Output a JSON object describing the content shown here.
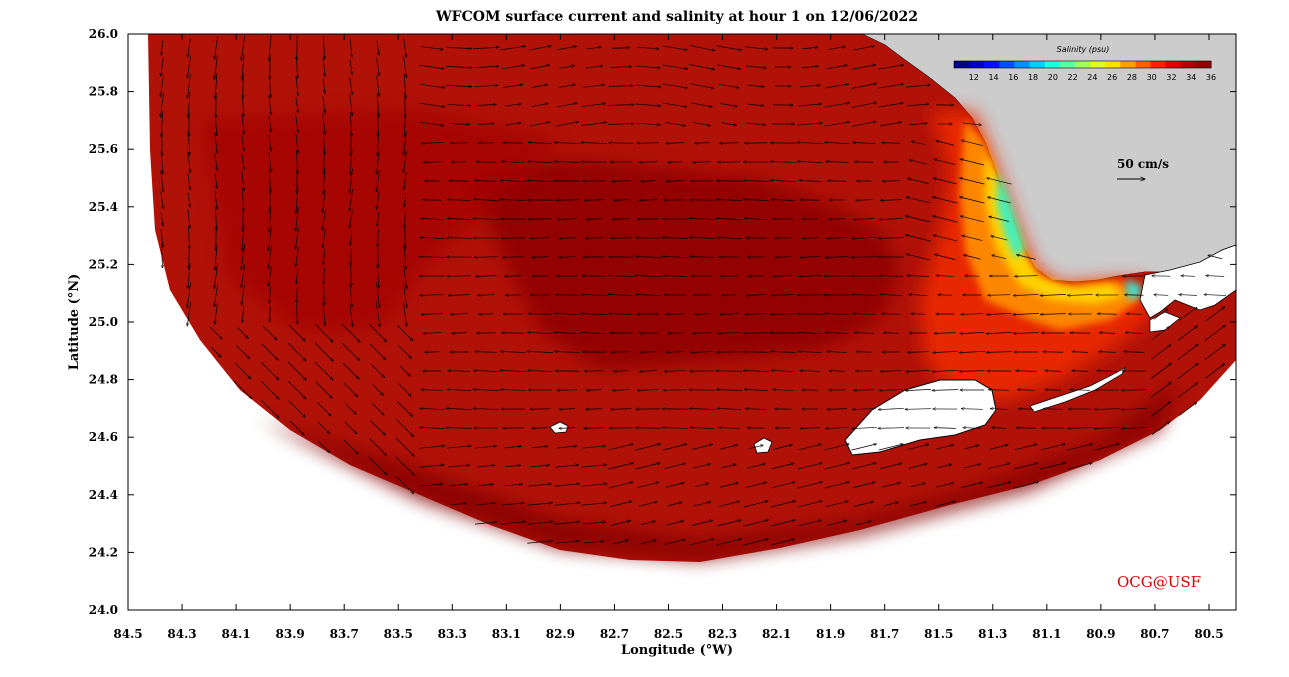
{
  "figure": {
    "title": "WFCOM surface current and salinity at hour 1 on 12/06/2022",
    "credit": "OCG@USF"
  },
  "axes": {
    "xlabel": "Longitude (°W)",
    "ylabel": "Latitude (°N)",
    "xticks": [
      "84.5",
      "84.3",
      "84.1",
      "83.9",
      "83.7",
      "83.5",
      "83.3",
      "83.1",
      "82.9",
      "82.7",
      "82.5",
      "82.3",
      "82.1",
      "81.9",
      "81.7",
      "81.5",
      "81.3",
      "81.1",
      "80.9",
      "80.7",
      "80.5"
    ],
    "yticks": [
      "26.0",
      "25.8",
      "25.6",
      "25.4",
      "25.2",
      "25.0",
      "24.8",
      "24.6",
      "24.4",
      "24.2",
      "24.0"
    ],
    "xlim": [
      84.5,
      80.4
    ],
    "ylim": [
      24.0,
      26.0
    ]
  },
  "colorbar": {
    "title": "Salinity (psu)",
    "min": 10,
    "max": 36,
    "ticks": [
      "12",
      "14",
      "16",
      "18",
      "20",
      "22",
      "24",
      "26",
      "28",
      "30",
      "32",
      "34",
      "36"
    ],
    "colors": [
      "#00008f",
      "#0000c8",
      "#0010ff",
      "#0050ff",
      "#0090ff",
      "#00d0ff",
      "#20ffe0",
      "#60ffa0",
      "#a0ff60",
      "#e0ff20",
      "#ffe000",
      "#ffa000",
      "#ff6000",
      "#ff2000",
      "#e00000",
      "#b00000",
      "#8f0000"
    ]
  },
  "velocity_scale": {
    "label": "50 cm/s"
  },
  "colors": {
    "ocean_high_salinity": "#b01208",
    "ocean_core": "#900000",
    "land": "#cccccc",
    "coastal_low_salinity": "#ffcc00",
    "credit": "#e00000"
  }
}
